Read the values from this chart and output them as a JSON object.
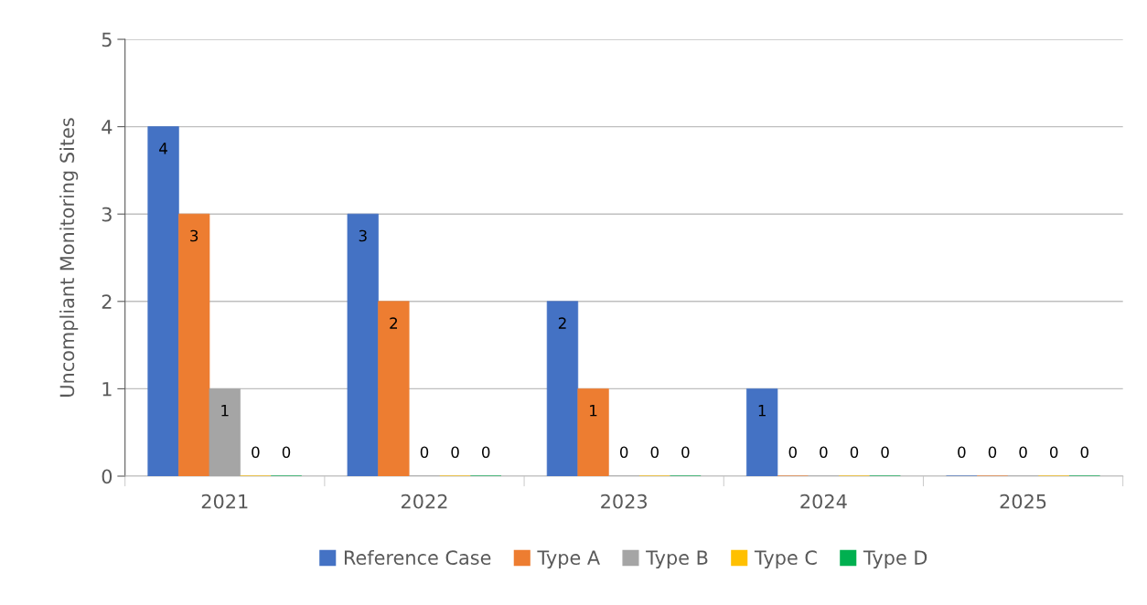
{
  "chart_data": {
    "type": "bar",
    "ylabel": "Uncompliant Monitoring Sites",
    "categories": [
      "2021",
      "2022",
      "2023",
      "2024",
      "2025"
    ],
    "series": [
      {
        "name": "Reference Case",
        "color": "#4472c4",
        "values": [
          4,
          3,
          2,
          1,
          0
        ]
      },
      {
        "name": "Type A",
        "color": "#ed7d31",
        "values": [
          3,
          2,
          1,
          0,
          0
        ]
      },
      {
        "name": "Type B",
        "color": "#a5a5a5",
        "values": [
          1,
          0,
          0,
          0,
          0
        ]
      },
      {
        "name": "Type C",
        "color": "#ffc000",
        "values": [
          0,
          0,
          0,
          0,
          0
        ]
      },
      {
        "name": "Type D",
        "color": "#00b050",
        "values": [
          0,
          0,
          0,
          0,
          0
        ]
      }
    ],
    "ylim": [
      0,
      5
    ],
    "yticks": [
      0,
      1,
      2,
      3,
      4,
      5
    ],
    "grid": "y",
    "legend": "bottom",
    "data_labels": true
  }
}
